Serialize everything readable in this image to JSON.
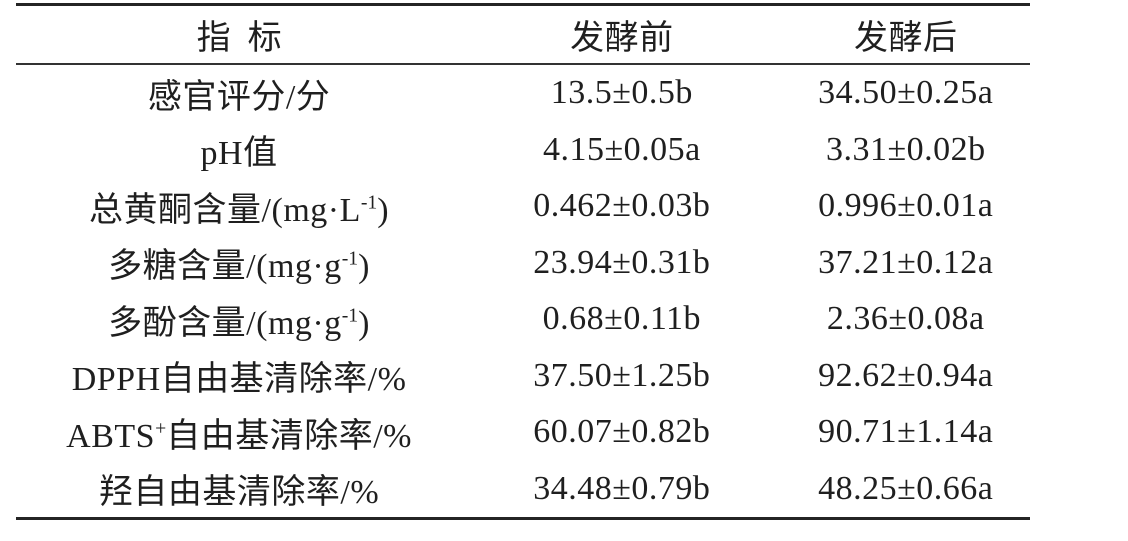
{
  "styles": {
    "background": "#ffffff",
    "text_color": "#1f1f1f",
    "rule_color": "#242424"
  },
  "table": {
    "columns": [
      {
        "id": "indicator",
        "label": "指标"
      },
      {
        "id": "before",
        "label": "发酵前"
      },
      {
        "id": "after",
        "label": "发酵后"
      }
    ],
    "rows": [
      {
        "label_parts": [
          {
            "text": "感官评分/分"
          }
        ],
        "before": "13.5±0.5b",
        "after": "34.50±0.25a"
      },
      {
        "label_parts": [
          {
            "text": "pH值"
          }
        ],
        "before": "4.15±0.05a",
        "after": "3.31±0.02b"
      },
      {
        "label_parts": [
          {
            "text": "总黄酮含量/(mg·L"
          },
          {
            "text": "-1",
            "sup": true
          },
          {
            "text": ")"
          }
        ],
        "before": "0.462±0.03b",
        "after": "0.996±0.01a"
      },
      {
        "label_parts": [
          {
            "text": "多糖含量/(mg·g"
          },
          {
            "text": "-1",
            "sup": true
          },
          {
            "text": ")"
          }
        ],
        "before": "23.94±0.31b",
        "after": "37.21±0.12a"
      },
      {
        "label_parts": [
          {
            "text": "多酚含量/(mg·g"
          },
          {
            "text": "-1",
            "sup": true
          },
          {
            "text": ")"
          }
        ],
        "before": "0.68±0.11b",
        "after": "2.36±0.08a"
      },
      {
        "label_parts": [
          {
            "text": "DPPH自由基清除率/%"
          }
        ],
        "before": "37.50±1.25b",
        "after": "92.62±0.94a"
      },
      {
        "label_parts": [
          {
            "text": "ABTS"
          },
          {
            "text": "+",
            "sup": true
          },
          {
            "text": "自由基清除率/%"
          }
        ],
        "before": "60.07±0.82b",
        "after": "90.71±1.14a"
      },
      {
        "label_parts": [
          {
            "text": "羟自由基清除率/%"
          }
        ],
        "before": "34.48±0.79b",
        "after": "48.25±0.66a"
      }
    ]
  }
}
